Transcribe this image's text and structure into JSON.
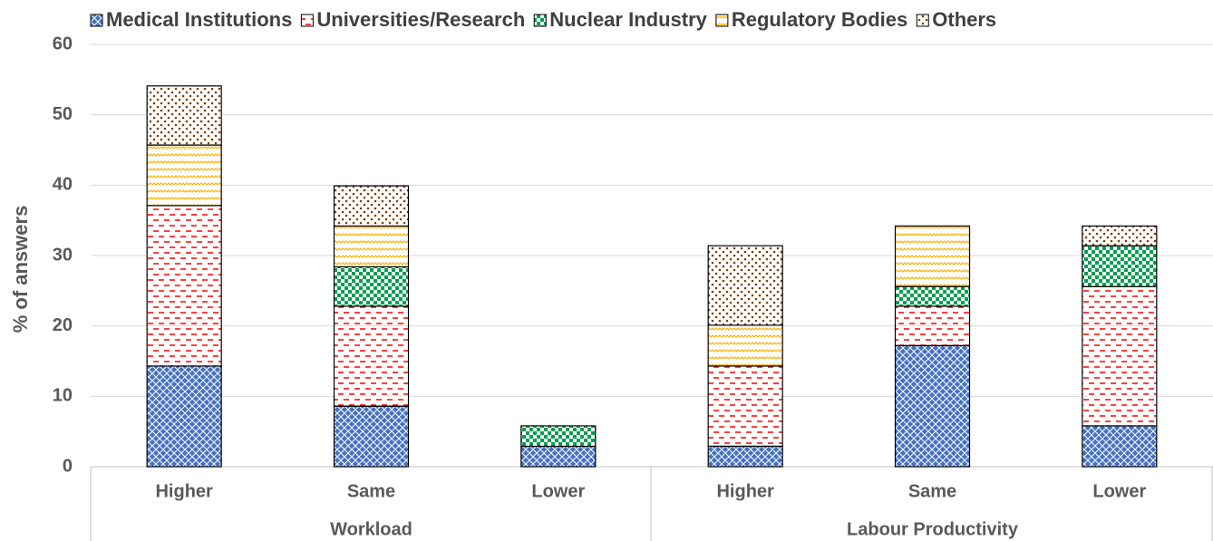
{
  "chart_data": {
    "type": "stacked_bar",
    "ylabel": "% of answers",
    "categories": [
      "Higher",
      "Same",
      "Lower",
      "Higher",
      "Same",
      "Lower"
    ],
    "groups": [
      {
        "name": "Workload",
        "count": 3
      },
      {
        "name": "Labour Productivity",
        "count": 3
      }
    ],
    "series": [
      {
        "name": "Medical Institutions",
        "color": "#4472c4",
        "pattern": "crosshatch",
        "values": [
          14.3,
          8.6,
          2.9,
          2.9,
          17.2,
          5.8
        ]
      },
      {
        "name": "Universities/Research",
        "color": "#ff0000",
        "pattern": "dashes",
        "values": [
          22.8,
          14.2,
          0,
          11.4,
          5.6,
          19.8
        ]
      },
      {
        "name": "Nuclear Industry",
        "color": "#00a050",
        "pattern": "checker",
        "values": [
          0,
          5.6,
          2.9,
          0,
          2.8,
          5.8
        ]
      },
      {
        "name": "Regulatory Bodies",
        "color": "#ffb000",
        "pattern": "zigzag",
        "values": [
          8.6,
          5.8,
          0,
          5.8,
          8.6,
          0
        ]
      },
      {
        "name": "Others",
        "color": "#7f3f00",
        "pattern": "dots",
        "values": [
          8.4,
          5.7,
          0,
          11.3,
          0,
          2.8
        ]
      }
    ],
    "ylim": [
      0,
      60
    ],
    "yticks": [
      0,
      10,
      20,
      30,
      40,
      50,
      60
    ],
    "grid": true,
    "legend": "top"
  }
}
